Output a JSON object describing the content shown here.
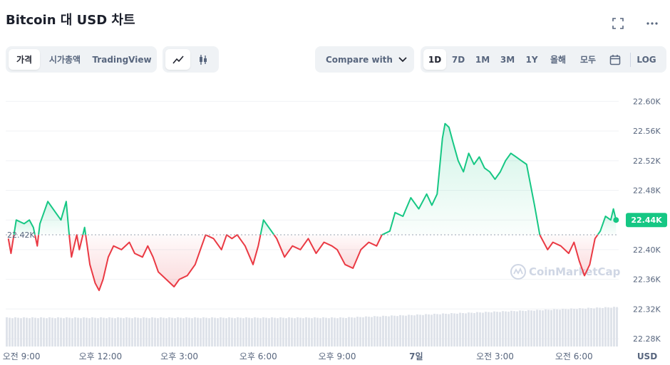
{
  "title": "Bitcoin 대 USD 차트",
  "icons": {
    "fullscreen": "fullscreen-icon",
    "more": "more-icon",
    "calendar": "calendar-icon",
    "line": "line-chart-icon",
    "candle": "candlestick-icon"
  },
  "tabs": [
    {
      "label": "가격",
      "active": true
    },
    {
      "label": "시가총액",
      "active": false
    },
    {
      "label": "TradingView",
      "active": false
    }
  ],
  "compare": {
    "label": "Compare with"
  },
  "ranges": [
    {
      "label": "1D",
      "active": true
    },
    {
      "label": "7D",
      "active": false
    },
    {
      "label": "1M",
      "active": false
    },
    {
      "label": "3M",
      "active": false
    },
    {
      "label": "1Y",
      "active": false
    },
    {
      "label": "올해",
      "active": false
    },
    {
      "label": "모두",
      "active": false
    }
  ],
  "log_label": "LOG",
  "colors": {
    "up": "#16c784",
    "down": "#ea3943",
    "text": "#58667e",
    "volume": "#cfd6e4"
  },
  "chart_data": {
    "type": "area",
    "y_ticks": [
      "22.60K",
      "22.56K",
      "22.52K",
      "22.48K",
      "22.44K",
      "22.40K",
      "22.36K",
      "22.32K",
      "22.28K"
    ],
    "ylim": [
      22.28,
      22.61
    ],
    "x_ticks": [
      "오전 9:00",
      "오후 12:00",
      "오후 3:00",
      "오후 6:00",
      "오후 9:00",
      "7일",
      "오전 3:00",
      "오전 6:00"
    ],
    "x_tick_hours": [
      0,
      3,
      6,
      9,
      12,
      15,
      18,
      21
    ],
    "xlim": [
      -0.6,
      22.7
    ],
    "baseline": {
      "label": "22.42K",
      "value": 22.42
    },
    "current": {
      "label": "22.44K",
      "value": 22.44
    },
    "currency": "USD",
    "watermark": "CoinMarketCap",
    "series": [
      {
        "points": [
          [
            -0.5,
            22.415
          ],
          [
            -0.4,
            22.395
          ],
          [
            -0.2,
            22.44
          ],
          [
            0.1,
            22.435
          ],
          [
            0.3,
            22.44
          ],
          [
            0.45,
            22.43
          ],
          [
            0.6,
            22.405
          ],
          [
            0.7,
            22.435
          ],
          [
            1.0,
            22.465
          ],
          [
            1.3,
            22.45
          ],
          [
            1.5,
            22.44
          ],
          [
            1.7,
            22.465
          ],
          [
            1.8,
            22.425
          ],
          [
            1.9,
            22.39
          ],
          [
            2.1,
            22.42
          ],
          [
            2.2,
            22.4
          ],
          [
            2.4,
            22.43
          ],
          [
            2.6,
            22.38
          ],
          [
            2.8,
            22.355
          ],
          [
            2.95,
            22.345
          ],
          [
            3.1,
            22.36
          ],
          [
            3.3,
            22.39
          ],
          [
            3.5,
            22.405
          ],
          [
            3.8,
            22.4
          ],
          [
            4.1,
            22.41
          ],
          [
            4.3,
            22.395
          ],
          [
            4.6,
            22.39
          ],
          [
            4.8,
            22.405
          ],
          [
            5.0,
            22.39
          ],
          [
            5.2,
            22.37
          ],
          [
            5.5,
            22.36
          ],
          [
            5.8,
            22.35
          ],
          [
            6.0,
            22.36
          ],
          [
            6.3,
            22.365
          ],
          [
            6.6,
            22.38
          ],
          [
            6.8,
            22.4
          ],
          [
            7.0,
            22.42
          ],
          [
            7.3,
            22.415
          ],
          [
            7.6,
            22.4
          ],
          [
            7.8,
            22.42
          ],
          [
            8.0,
            22.415
          ],
          [
            8.2,
            22.42
          ],
          [
            8.5,
            22.405
          ],
          [
            8.8,
            22.38
          ],
          [
            9.0,
            22.405
          ],
          [
            9.2,
            22.44
          ],
          [
            9.5,
            22.425
          ],
          [
            9.7,
            22.415
          ],
          [
            10.0,
            22.39
          ],
          [
            10.3,
            22.405
          ],
          [
            10.6,
            22.4
          ],
          [
            10.9,
            22.415
          ],
          [
            11.2,
            22.395
          ],
          [
            11.5,
            22.41
          ],
          [
            11.8,
            22.405
          ],
          [
            12.0,
            22.4
          ],
          [
            12.3,
            22.38
          ],
          [
            12.6,
            22.375
          ],
          [
            12.9,
            22.4
          ],
          [
            13.2,
            22.41
          ],
          [
            13.5,
            22.405
          ],
          [
            13.7,
            22.42
          ],
          [
            14.0,
            22.425
          ],
          [
            14.2,
            22.45
          ],
          [
            14.5,
            22.445
          ],
          [
            14.8,
            22.47
          ],
          [
            15.1,
            22.455
          ],
          [
            15.4,
            22.475
          ],
          [
            15.6,
            22.46
          ],
          [
            15.8,
            22.475
          ],
          [
            16.0,
            22.55
          ],
          [
            16.1,
            22.57
          ],
          [
            16.25,
            22.565
          ],
          [
            16.4,
            22.545
          ],
          [
            16.6,
            22.52
          ],
          [
            16.8,
            22.505
          ],
          [
            17.0,
            22.53
          ],
          [
            17.2,
            22.515
          ],
          [
            17.4,
            22.525
          ],
          [
            17.6,
            22.51
          ],
          [
            17.8,
            22.505
          ],
          [
            18.0,
            22.495
          ],
          [
            18.2,
            22.505
          ],
          [
            18.4,
            22.52
          ],
          [
            18.6,
            22.53
          ],
          [
            18.8,
            22.525
          ],
          [
            19.0,
            22.52
          ],
          [
            19.2,
            22.515
          ],
          [
            19.5,
            22.46
          ],
          [
            19.7,
            22.42
          ],
          [
            20.0,
            22.4
          ],
          [
            20.2,
            22.41
          ],
          [
            20.5,
            22.405
          ],
          [
            20.8,
            22.395
          ],
          [
            21.0,
            22.41
          ],
          [
            21.2,
            22.385
          ],
          [
            21.4,
            22.365
          ],
          [
            21.6,
            22.38
          ],
          [
            21.8,
            22.415
          ],
          [
            22.0,
            22.425
          ],
          [
            22.2,
            22.445
          ],
          [
            22.4,
            22.44
          ],
          [
            22.5,
            22.455
          ],
          [
            22.6,
            22.44
          ]
        ]
      }
    ]
  }
}
